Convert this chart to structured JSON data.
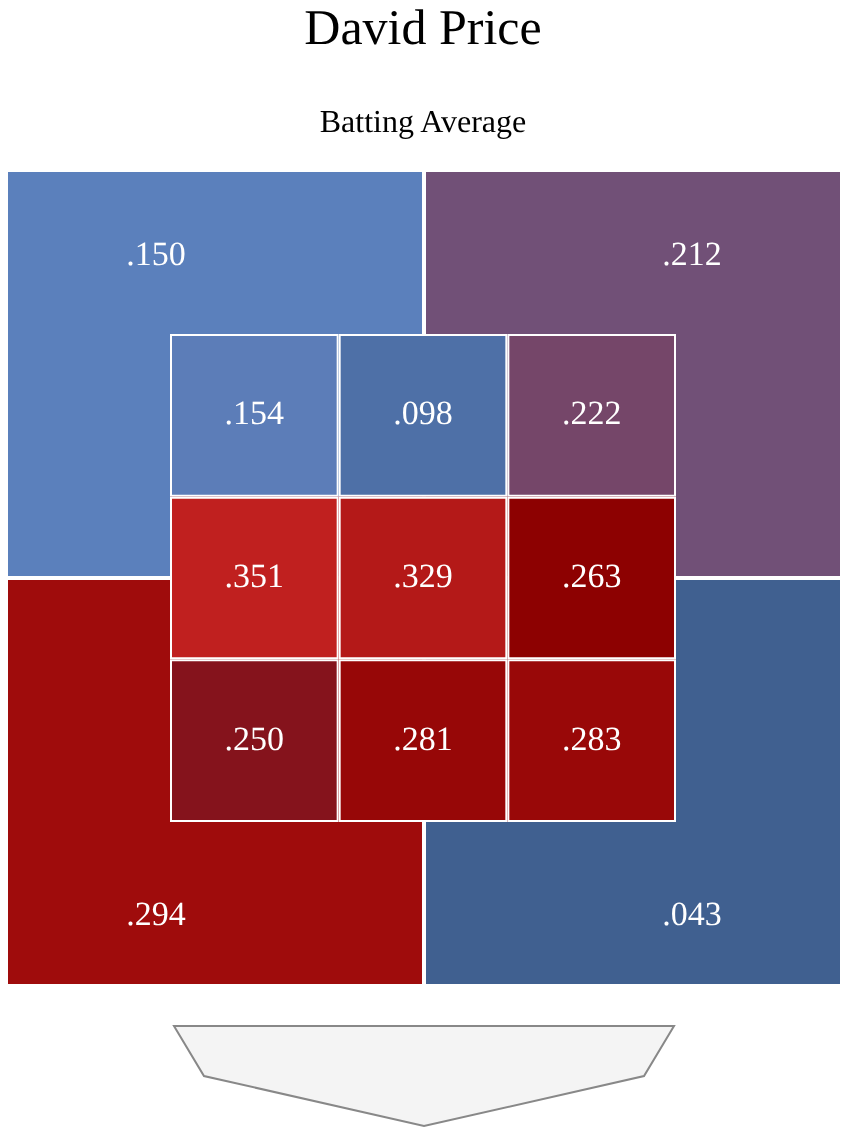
{
  "chart_data": [
    {
      "type": "heatmap",
      "title": "David Price",
      "subtitle": "Batting Average",
      "categories": [
        null,
        null
      ],
      "y_categories": [
        null,
        null
      ],
      "cells": [
        [
          0.15,
          0.212
        ],
        [
          0.294,
          0.043
        ]
      ],
      "cell_labels": [
        [
          ".150",
          ".212"
        ],
        [
          ".294",
          ".043"
        ]
      ]
    },
    {
      "type": "heatmap",
      "categories": [
        null,
        null,
        null
      ],
      "y_categories": [
        null,
        null,
        null
      ],
      "cells": [
        [
          0.154,
          0.098,
          0.222
        ],
        [
          0.351,
          0.329,
          0.263
        ],
        [
          0.25,
          0.281,
          0.283
        ]
      ],
      "cell_labels": [
        [
          ".154",
          ".098",
          ".222"
        ],
        [
          ".351",
          ".329",
          ".263"
        ],
        [
          ".250",
          ".281",
          ".283"
        ]
      ]
    }
  ]
}
